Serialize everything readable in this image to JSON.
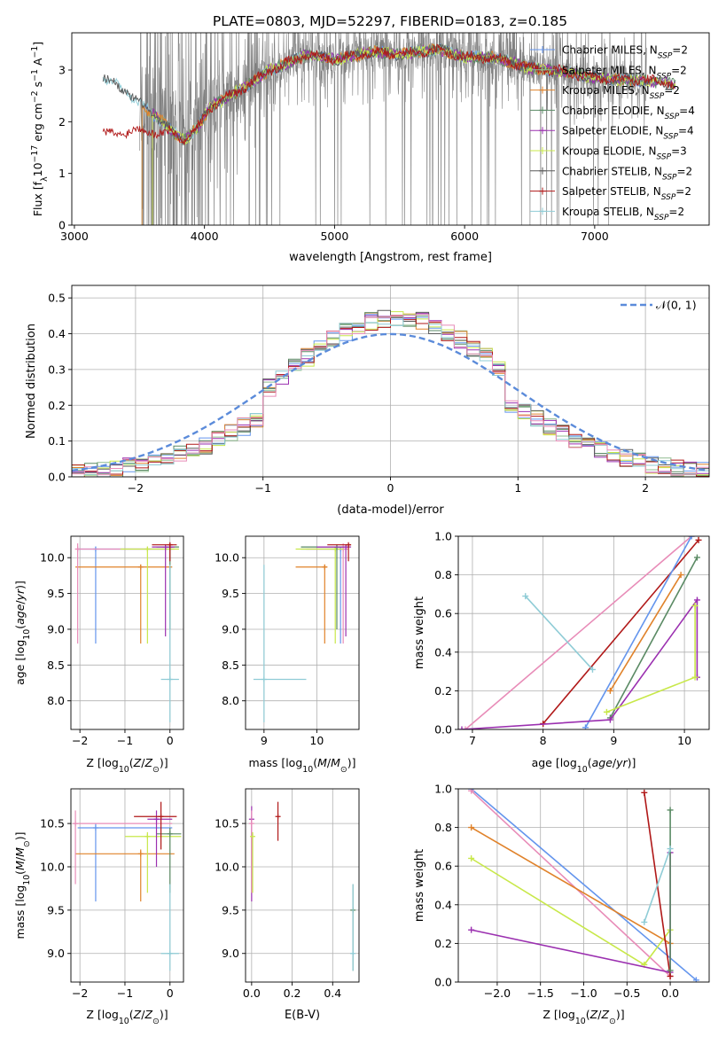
{
  "figure": {
    "title": "PLATE=0803, MJD=52297, FIBERID=0183, z=0.185"
  },
  "colors": {
    "Chabrier MILES": "#6495ED",
    "Salpeter MILES": "#8FBC8F",
    "Kroupa MILES": "#E0822A",
    "Chabrier ELODIE": "#5A8A64",
    "Salpeter ELODIE": "#9B30B0",
    "Kroupa ELODIE": "#C8E84A",
    "Chabrier STELIB": "#5A5A5A",
    "Salpeter STELIB": "#B01818",
    "Kroupa STELIB": "#8FCCD6",
    "pink": "#E88CB8",
    "data": "#808080",
    "gaussian": "#5B8BDA"
  },
  "chart_data": [
    {
      "id": "spectrum",
      "type": "line",
      "title": "PLATE=0803, MJD=52297, FIBERID=0183, z=0.185",
      "xlabel": "wavelength [Angstrom, rest frame]",
      "ylabel_parts": [
        "Flux [f",
        "λ",
        "10",
        "−17",
        " erg cm",
        "−2",
        " s",
        "−1",
        " A",
        "−1",
        "]"
      ],
      "xlim": [
        2980,
        7880
      ],
      "ylim": [
        0,
        3.72
      ],
      "xticks": [
        "3000",
        "4000",
        "5000",
        "6000",
        "7000"
      ],
      "xtick_values": [
        3000,
        4000,
        5000,
        6000,
        7000
      ],
      "yticks": [
        "0",
        "1",
        "2",
        "3"
      ],
      "ytick_values": [
        0,
        1,
        2,
        3
      ],
      "legend_position": "top-right",
      "legend": [
        {
          "pre": "Chabrier MILES, N",
          "sub": "SSP",
          "post": "=2",
          "key": "Chabrier MILES"
        },
        {
          "pre": "Salpeter MILES, N",
          "sub": "SSP",
          "post": "=2",
          "key": "Salpeter MILES"
        },
        {
          "pre": "Kroupa MILES, N",
          "sub": "SSP",
          "post": "=2",
          "key": "Kroupa MILES"
        },
        {
          "pre": "Chabrier ELODIE, N",
          "sub": "SSP",
          "post": "=4",
          "key": "Chabrier ELODIE"
        },
        {
          "pre": "Salpeter ELODIE, N",
          "sub": "SSP",
          "post": "=4",
          "key": "Salpeter ELODIE"
        },
        {
          "pre": "Kroupa ELODIE, N",
          "sub": "SSP",
          "post": "=3",
          "key": "Kroupa ELODIE"
        },
        {
          "pre": "Chabrier STELIB, N",
          "sub": "SSP",
          "post": "=2",
          "key": "Chabrier STELIB"
        },
        {
          "pre": "Salpeter STELIB, N",
          "sub": "SSP",
          "post": "=2",
          "key": "Salpeter STELIB"
        },
        {
          "pre": "Kroupa STELIB, N",
          "sub": "SSP",
          "post": "=2",
          "key": "Kroupa STELIB"
        }
      ],
      "data_range": [
        3500,
        7400
      ],
      "continuum": [
        [
          3220,
          2.85
        ],
        [
          3400,
          2.6
        ],
        [
          3500,
          2.35
        ],
        [
          3700,
          1.95
        ],
        [
          3750,
          1.8
        ],
        [
          3850,
          1.65
        ],
        [
          3950,
          1.9
        ],
        [
          4050,
          2.3
        ],
        [
          4300,
          2.65
        ],
        [
          4500,
          3.0
        ],
        [
          4800,
          3.3
        ],
        [
          5000,
          3.2
        ],
        [
          5300,
          3.35
        ],
        [
          5500,
          3.3
        ],
        [
          5800,
          3.4
        ],
        [
          6000,
          3.25
        ],
        [
          6200,
          3.25
        ],
        [
          6500,
          3.05
        ],
        [
          6800,
          2.95
        ],
        [
          7000,
          2.85
        ],
        [
          7200,
          2.8
        ],
        [
          7400,
          2.8
        ],
        [
          7600,
          2.72
        ]
      ],
      "stelib_continuum": [
        [
          3220,
          1.75
        ],
        [
          3400,
          1.8
        ],
        [
          3550,
          1.85
        ],
        [
          3700,
          1.75
        ]
      ],
      "model_start": {
        "MILES": 3520,
        "ELODIE": 3600,
        "STELIB": 3220
      }
    },
    {
      "id": "residuals",
      "type": "histogram",
      "xlabel": "(data-model)/error",
      "ylabel": "Normed distribution",
      "xlim": [
        -2.5,
        2.5
      ],
      "ylim": [
        0,
        0.535
      ],
      "xticks": [
        "−2",
        "−1",
        "0",
        "1",
        "2"
      ],
      "xtick_values": [
        -2,
        -1,
        0,
        1,
        2
      ],
      "yticks": [
        "0.0",
        "0.1",
        "0.2",
        "0.3",
        "0.4",
        "0.5"
      ],
      "ytick_values": [
        0,
        0.1,
        0.2,
        0.3,
        0.4,
        0.5
      ],
      "legend": "𝒩(0, 1)",
      "legend_position": "top-right",
      "bin_edges": [
        -2.5,
        2.5
      ],
      "bin_width": 0.1
    },
    {
      "id": "age-vs-Z",
      "type": "scatter",
      "xlabel": "Z [log10(Z/Z⊙)]",
      "ylabel": "age  [log10(age/yr)]",
      "xlim": [
        -2.2,
        0.3
      ],
      "ylim": [
        7.6,
        10.3
      ],
      "xticks": [
        "−2",
        "−1",
        "0"
      ],
      "xtick_values": [
        -2,
        -1,
        0
      ],
      "yticks": [
        "8.0",
        "8.5",
        "9.0",
        "9.5",
        "10.0"
      ],
      "ytick_values": [
        8.0,
        8.5,
        9.0,
        9.5,
        10.0
      ],
      "points": [
        {
          "c": "Chabrier MILES",
          "x": -1.65,
          "y": 10.12,
          "xe": [
            -2.05,
            0.05
          ],
          "ye": [
            8.8,
            10.15
          ]
        },
        {
          "c": "Kroupa MILES",
          "x": -0.65,
          "y": 9.87,
          "xe": [
            -2.1,
            0.05
          ],
          "ye": [
            8.8,
            9.9
          ]
        },
        {
          "c": "pink",
          "x": -2.05,
          "y": 10.12,
          "xe": [
            -2.1,
            0.1
          ],
          "ye": [
            8.8,
            10.2
          ]
        },
        {
          "c": "Kroupa ELODIE",
          "x": -0.5,
          "y": 10.12,
          "xe": [
            -1.1,
            0.2
          ],
          "ye": [
            8.8,
            10.15
          ]
        },
        {
          "c": "Chabrier ELODIE",
          "x": 0.0,
          "y": 10.15,
          "xe": [
            -0.3,
            0.2
          ],
          "ye": [
            9.0,
            10.18
          ]
        },
        {
          "c": "Salpeter ELODIE",
          "x": -0.1,
          "y": 10.15,
          "xe": [
            -0.4,
            0.1
          ],
          "ye": [
            8.9,
            10.18
          ]
        },
        {
          "c": "Salpeter STELIB",
          "x": 0.0,
          "y": 10.18,
          "xe": [
            -0.4,
            0.15
          ],
          "ye": [
            9.95,
            10.2
          ]
        },
        {
          "c": "Kroupa STELIB",
          "x": 0.0,
          "y": 8.3,
          "xe": [
            -0.2,
            0.2
          ],
          "ye": [
            7.7,
            9.9
          ]
        }
      ]
    },
    {
      "id": "age-vs-mass",
      "type": "scatter",
      "xlabel": "mass [log10(M/M⊙)]",
      "ylabel": "",
      "xlim": [
        8.65,
        10.8
      ],
      "ylim": [
        7.6,
        10.3
      ],
      "xticks": [
        "9",
        "10"
      ],
      "xtick_values": [
        9,
        10
      ],
      "yticks": [
        "8.0",
        "8.5",
        "9.0",
        "9.5",
        "10.0"
      ],
      "ytick_values": [
        8.0,
        8.5,
        9.0,
        9.5,
        10.0
      ],
      "points": [
        {
          "c": "Chabrier MILES",
          "x": 10.45,
          "y": 10.12,
          "xe": [
            9.7,
            10.5
          ],
          "ye": [
            8.8,
            10.15
          ]
        },
        {
          "c": "Kroupa MILES",
          "x": 10.15,
          "y": 9.87,
          "xe": [
            9.6,
            10.2
          ],
          "ye": [
            8.8,
            9.9
          ]
        },
        {
          "c": "pink",
          "x": 10.5,
          "y": 10.12,
          "xe": [
            9.8,
            10.6
          ],
          "ye": [
            8.8,
            10.2
          ]
        },
        {
          "c": "Kroupa ELODIE",
          "x": 10.35,
          "y": 10.12,
          "xe": [
            9.6,
            10.5
          ],
          "ye": [
            8.8,
            10.15
          ]
        },
        {
          "c": "Chabrier ELODIE",
          "x": 10.38,
          "y": 10.15,
          "xe": [
            9.7,
            10.5
          ],
          "ye": [
            9.0,
            10.18
          ]
        },
        {
          "c": "Salpeter ELODIE",
          "x": 10.55,
          "y": 10.15,
          "xe": [
            10.0,
            10.65
          ],
          "ye": [
            8.9,
            10.18
          ]
        },
        {
          "c": "Salpeter STELIB",
          "x": 10.6,
          "y": 10.18,
          "xe": [
            10.2,
            10.65
          ],
          "ye": [
            9.95,
            10.2
          ]
        },
        {
          "c": "Kroupa STELIB",
          "x": 9.0,
          "y": 8.3,
          "xe": [
            8.8,
            9.8
          ],
          "ye": [
            7.7,
            9.9
          ]
        }
      ]
    },
    {
      "id": "weight-vs-age",
      "type": "line",
      "xlabel": "age  [log10(age/yr)]",
      "ylabel": "mass weight",
      "xlim": [
        6.8,
        10.35
      ],
      "ylim": [
        0,
        1
      ],
      "xticks": [
        "7",
        "8",
        "9",
        "10"
      ],
      "xtick_values": [
        7,
        8,
        9,
        10
      ],
      "yticks": [
        "0.0",
        "0.2",
        "0.4",
        "0.6",
        "0.8",
        "1.0"
      ],
      "ytick_values": [
        0,
        0.2,
        0.4,
        0.6,
        0.8,
        1.0
      ],
      "series": [
        {
          "c": "pink",
          "points": [
            [
              6.9,
              0.0
            ],
            [
              10.1,
              1.0
            ]
          ]
        },
        {
          "c": "Salpeter STELIB",
          "points": [
            [
              8.0,
              0.03
            ],
            [
              10.2,
              0.98
            ]
          ]
        },
        {
          "c": "Chabrier MILES",
          "points": [
            [
              8.6,
              0.01
            ],
            [
              10.1,
              1.0
            ]
          ]
        },
        {
          "c": "Kroupa MILES",
          "points": [
            [
              8.95,
              0.2
            ],
            [
              9.95,
              0.8
            ]
          ]
        },
        {
          "c": "Chabrier ELODIE",
          "points": [
            [
              8.95,
              0.06
            ],
            [
              10.18,
              0.89
            ]
          ]
        },
        {
          "c": "Salpeter ELODIE",
          "points": [
            [
              6.85,
              0.0
            ],
            [
              8.95,
              0.05
            ],
            [
              10.18,
              0.67
            ],
            [
              10.18,
              0.27
            ]
          ]
        },
        {
          "c": "Kroupa ELODIE",
          "points": [
            [
              8.9,
              0.09
            ],
            [
              10.15,
              0.27
            ],
            [
              10.15,
              0.64
            ]
          ]
        },
        {
          "c": "Kroupa STELIB",
          "points": [
            [
              7.75,
              0.69
            ],
            [
              8.7,
              0.31
            ]
          ]
        }
      ]
    },
    {
      "id": "mass-vs-Z",
      "type": "scatter",
      "xlabel": "Z [log10(Z/Z⊙)]",
      "ylabel": "mass [log10(M/M⊙)]",
      "xlim": [
        -2.2,
        0.3
      ],
      "ylim": [
        8.67,
        10.9
      ],
      "xticks": [
        "−2",
        "−1",
        "0"
      ],
      "xtick_values": [
        -2,
        -1,
        0
      ],
      "yticks": [
        "9.0",
        "9.5",
        "10.0",
        "10.5"
      ],
      "ytick_values": [
        9.0,
        9.5,
        10.0,
        10.5
      ],
      "points": [
        {
          "c": "Chabrier MILES",
          "x": -1.65,
          "y": 10.45,
          "xe": [
            -2.05,
            0.05
          ],
          "ye": [
            9.6,
            10.5
          ]
        },
        {
          "c": "Kroupa MILES",
          "x": -0.65,
          "y": 10.15,
          "xe": [
            -2.1,
            0.1
          ],
          "ye": [
            9.6,
            10.2
          ]
        },
        {
          "c": "pink",
          "x": -2.1,
          "y": 10.5,
          "xe": [
            -2.15,
            0.05
          ],
          "ye": [
            9.8,
            10.65
          ]
        },
        {
          "c": "Kroupa ELODIE",
          "x": -0.5,
          "y": 10.35,
          "xe": [
            -1.0,
            0.25
          ],
          "ye": [
            9.7,
            10.4
          ]
        },
        {
          "c": "Chabrier ELODIE",
          "x": 0.0,
          "y": 10.38,
          "xe": [
            -0.3,
            0.25
          ],
          "ye": [
            9.7,
            10.45
          ]
        },
        {
          "c": "Salpeter ELODIE",
          "x": -0.3,
          "y": 10.55,
          "xe": [
            -0.5,
            0.05
          ],
          "ye": [
            10.0,
            10.65
          ]
        },
        {
          "c": "Salpeter STELIB",
          "x": -0.2,
          "y": 10.58,
          "xe": [
            -0.8,
            0.15
          ],
          "ye": [
            10.2,
            10.75
          ]
        },
        {
          "c": "Kroupa STELIB",
          "x": 0.0,
          "y": 9.0,
          "xe": [
            -0.2,
            0.2
          ],
          "ye": [
            8.8,
            9.8
          ]
        }
      ]
    },
    {
      "id": "mass-vs-EBV",
      "type": "scatter",
      "xlabel": "E(B-V)",
      "ylabel": "",
      "xlim": [
        -0.03,
        0.53
      ],
      "ylim": [
        8.67,
        10.9
      ],
      "xticks": [
        "0.0",
        "0.2",
        "0.4"
      ],
      "xtick_values": [
        0,
        0.2,
        0.4
      ],
      "yticks": [
        "9.0",
        "9.5",
        "10.0",
        "10.5"
      ],
      "ytick_values": [
        9.0,
        9.5,
        10.0,
        10.5
      ],
      "points": [
        {
          "c": "Salpeter ELODIE",
          "x": 0.0,
          "y": 10.55,
          "ye": [
            9.6,
            10.7
          ]
        },
        {
          "c": "pink",
          "x": 0.0,
          "y": 10.5,
          "ye": [
            9.7,
            10.65
          ]
        },
        {
          "c": "Kroupa ELODIE",
          "x": 0.005,
          "y": 10.35,
          "ye": [
            9.7,
            10.4
          ]
        },
        {
          "c": "Salpeter STELIB",
          "x": 0.13,
          "y": 10.58,
          "ye": [
            10.3,
            10.75
          ]
        },
        {
          "c": "Chabrier ELODIE",
          "x": 0.5,
          "y": 9.5,
          "ye": [
            8.8,
            9.8
          ]
        },
        {
          "c": "Kroupa STELIB",
          "x": 0.5,
          "y": 9.0,
          "ye": [
            8.8,
            9.8
          ]
        }
      ]
    },
    {
      "id": "weight-vs-Z",
      "type": "line",
      "xlabel": "Z [log10(Z/Z⊙)]",
      "ylabel": "mass weight",
      "xlim": [
        -2.45,
        0.45
      ],
      "ylim": [
        0,
        1
      ],
      "xticks": [
        "−2.0",
        "−1.5",
        "−1.0",
        "−0.5",
        "0.0"
      ],
      "xtick_values": [
        -2.0,
        -1.5,
        -1.0,
        -0.5,
        0.0
      ],
      "yticks": [
        "0.0",
        "0.2",
        "0.4",
        "0.6",
        "0.8",
        "1.0"
      ],
      "ytick_values": [
        0,
        0.2,
        0.4,
        0.6,
        0.8,
        1.0
      ],
      "series": [
        {
          "c": "Chabrier MILES",
          "points": [
            [
              -2.3,
              1.0
            ],
            [
              0.3,
              0.01
            ]
          ]
        },
        {
          "c": "pink",
          "points": [
            [
              -2.3,
              0.99
            ],
            [
              0.0,
              0.03
            ]
          ]
        },
        {
          "c": "Kroupa MILES",
          "points": [
            [
              -2.3,
              0.8
            ],
            [
              0.0,
              0.2
            ]
          ]
        },
        {
          "c": "Kroupa ELODIE",
          "points": [
            [
              -2.3,
              0.64
            ],
            [
              -0.3,
              0.09
            ],
            [
              0.0,
              0.27
            ]
          ]
        },
        {
          "c": "Salpeter ELODIE",
          "points": [
            [
              -2.3,
              0.27
            ],
            [
              0.0,
              0.05
            ],
            [
              0.0,
              0.67
            ]
          ]
        },
        {
          "c": "Salpeter STELIB",
          "points": [
            [
              -0.3,
              0.98
            ],
            [
              0.0,
              0.03
            ]
          ]
        },
        {
          "c": "Chabrier ELODIE",
          "points": [
            [
              0.0,
              0.89
            ],
            [
              0.0,
              0.06
            ]
          ]
        },
        {
          "c": "Kroupa STELIB",
          "points": [
            [
              -0.3,
              0.31
            ],
            [
              0.0,
              0.69
            ]
          ]
        }
      ]
    }
  ]
}
